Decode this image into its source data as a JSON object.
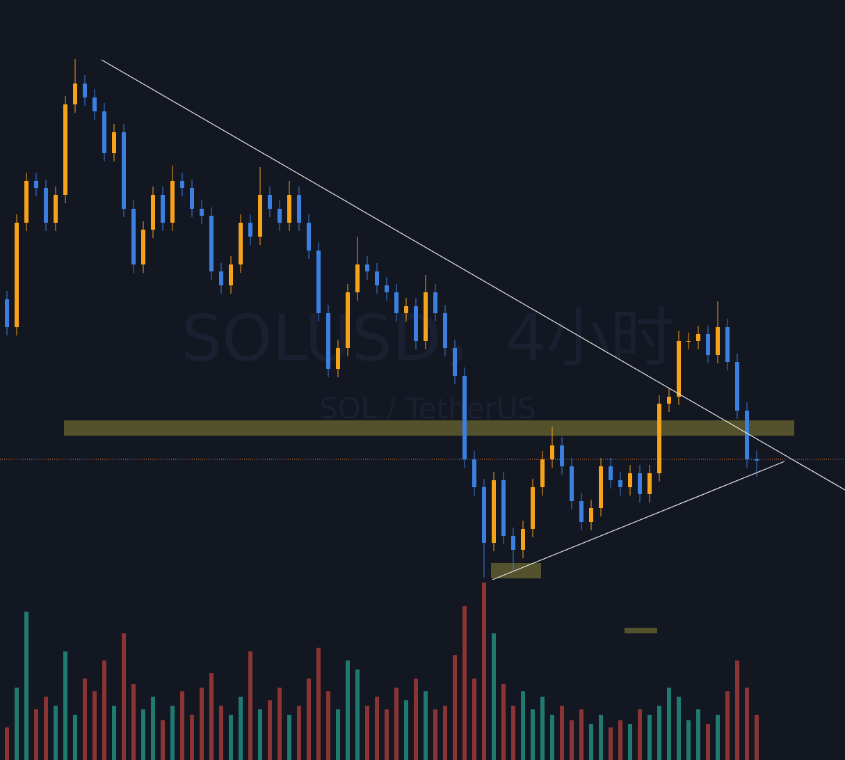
{
  "chart_data": {
    "type": "candlestick",
    "title": "SOLUSD，4小时",
    "subtitle": "SOL / TetherUS",
    "open": [
      440,
      400,
      550,
      610,
      600,
      550,
      590,
      720,
      750,
      730,
      710,
      650,
      680,
      570,
      490,
      540,
      590,
      550,
      610,
      600,
      570,
      560,
      480,
      460,
      490,
      550,
      530,
      590,
      570,
      550,
      590,
      550,
      510,
      420,
      340,
      370,
      450,
      490,
      480,
      460,
      450,
      420,
      430,
      380,
      450,
      420,
      370,
      330,
      210,
      170,
      90,
      180,
      100,
      80,
      110,
      170,
      210,
      230,
      200,
      150,
      120,
      140,
      200,
      180,
      170,
      190,
      160,
      190,
      290,
      300,
      380,
      380,
      390,
      360,
      400,
      350,
      280,
      210
    ],
    "high": [
      452,
      562,
      622,
      622,
      612,
      602,
      732,
      785,
      762,
      742,
      722,
      692,
      692,
      582,
      552,
      602,
      602,
      632,
      622,
      612,
      582,
      572,
      492,
      502,
      562,
      562,
      630,
      602,
      582,
      610,
      602,
      562,
      522,
      432,
      382,
      462,
      530,
      502,
      492,
      472,
      462,
      442,
      442,
      475,
      462,
      432,
      382,
      342,
      222,
      182,
      192,
      192,
      112,
      122,
      182,
      222,
      257,
      242,
      212,
      162,
      152,
      212,
      212,
      192,
      202,
      202,
      202,
      302,
      312,
      395,
      392,
      402,
      402,
      437,
      412,
      362,
      292,
      222
    ],
    "low": [
      388,
      388,
      538,
      588,
      538,
      538,
      578,
      708,
      718,
      698,
      638,
      638,
      558,
      478,
      478,
      528,
      538,
      538,
      588,
      558,
      548,
      468,
      448,
      448,
      478,
      518,
      518,
      558,
      538,
      538,
      538,
      498,
      408,
      328,
      328,
      358,
      438,
      468,
      448,
      438,
      408,
      408,
      368,
      368,
      408,
      358,
      318,
      198,
      158,
      40,
      78,
      88,
      50,
      68,
      98,
      158,
      198,
      188,
      138,
      108,
      108,
      128,
      168,
      158,
      158,
      148,
      148,
      178,
      278,
      288,
      368,
      368,
      348,
      348,
      338,
      268,
      198,
      185
    ],
    "close": [
      400,
      550,
      610,
      600,
      550,
      590,
      720,
      750,
      730,
      710,
      650,
      680,
      570,
      490,
      540,
      590,
      550,
      610,
      600,
      570,
      560,
      480,
      460,
      490,
      550,
      530,
      590,
      570,
      550,
      590,
      550,
      510,
      420,
      340,
      370,
      450,
      490,
      480,
      460,
      450,
      420,
      430,
      380,
      450,
      420,
      370,
      330,
      210,
      170,
      90,
      180,
      100,
      80,
      110,
      170,
      210,
      230,
      200,
      150,
      120,
      140,
      200,
      180,
      170,
      190,
      160,
      190,
      290,
      300,
      380,
      380,
      390,
      360,
      400,
      350,
      280,
      210,
      208
    ],
    "volume": [
      18,
      40,
      82,
      28,
      35,
      30,
      60,
      25,
      45,
      38,
      55,
      30,
      70,
      42,
      28,
      35,
      22,
      30,
      38,
      25,
      40,
      48,
      30,
      25,
      35,
      60,
      28,
      33,
      40,
      25,
      30,
      45,
      62,
      38,
      28,
      55,
      50,
      30,
      35,
      28,
      40,
      33,
      45,
      38,
      28,
      30,
      58,
      85,
      45,
      98,
      70,
      42,
      30,
      38,
      28,
      35,
      25,
      30,
      22,
      28,
      20,
      25,
      18,
      22,
      20,
      28,
      25,
      30,
      40,
      35,
      22,
      28,
      20,
      25,
      38,
      55,
      40,
      25
    ],
    "ylim": [
      0,
      870
    ],
    "volume_ylim": [
      0,
      100
    ],
    "up_color": "#f7a21b",
    "down_color": "#3b7fe0",
    "volume_up_color": "#1f7a70",
    "volume_down_color": "#8a3434"
  }
}
